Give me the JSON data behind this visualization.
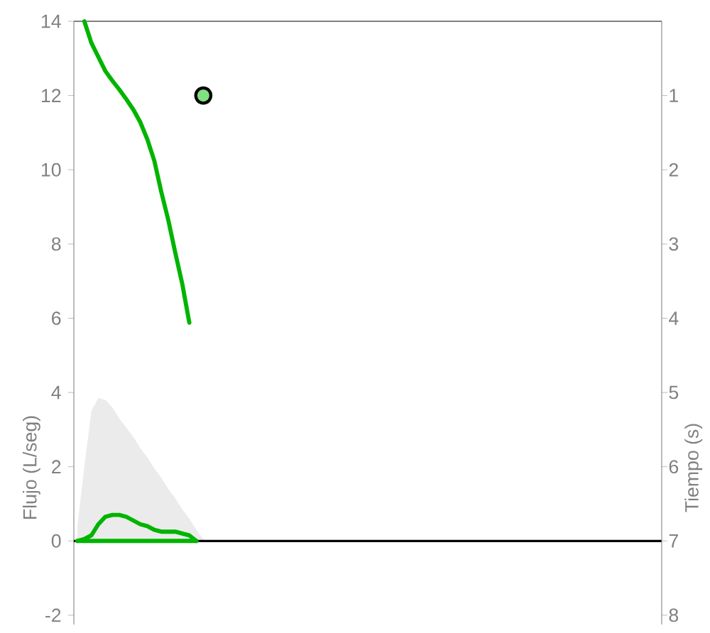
{
  "chart_data": {
    "type": "line",
    "ylabel": "Flujo (L/seg)",
    "y2label": "Tiempo (s)",
    "categories": [
      null,
      null,
      null,
      null,
      null,
      null,
      null,
      null,
      null,
      null,
      null,
      null,
      null,
      null,
      null,
      null,
      null,
      null,
      null,
      null,
      null,
      null,
      null,
      null,
      null,
      null,
      null,
      null,
      null,
      null,
      null,
      null,
      null,
      null,
      null,
      null,
      null,
      null,
      null,
      null,
      null,
      null,
      null,
      null,
      null,
      null,
      null,
      null,
      null,
      null,
      null,
      null,
      null,
      null,
      null,
      null,
      null,
      null,
      null,
      null,
      null,
      null,
      null,
      null,
      null,
      null,
      null,
      null,
      null,
      null,
      null,
      null,
      null,
      null,
      null,
      null,
      null,
      null,
      null,
      null,
      null,
      null,
      null,
      null
    ],
    "series": [
      {
        "type": "area",
        "color": "#ebebeb",
        "values": [
          0.4,
          2.0,
          3.5,
          3.85,
          3.8,
          3.6,
          3.3,
          3.05,
          2.8,
          2.5,
          2.25,
          1.95,
          1.7,
          1.4,
          1.15,
          0.85,
          0.6,
          0.3,
          0.05,
          null,
          null,
          null,
          null,
          null,
          null,
          null,
          null,
          null,
          null,
          null,
          null,
          null,
          null,
          null,
          null,
          null,
          null,
          null,
          null,
          null,
          null,
          null,
          null,
          null,
          null,
          null,
          null,
          null,
          null,
          null,
          null,
          null,
          null,
          null,
          null,
          null,
          null,
          null,
          null,
          null,
          null,
          null,
          null,
          null,
          null,
          null,
          null,
          null,
          null,
          null,
          null,
          null,
          null,
          null,
          null,
          null,
          null,
          null,
          null,
          null,
          null,
          null,
          null,
          null
        ]
      },
      {
        "color": "#00b400",
        "values": [
          0,
          0.05,
          0.15,
          0.45,
          0.65,
          0.7,
          0.7,
          0.65,
          0.55,
          0.45,
          0.4,
          0.3,
          0.25,
          0.25,
          0.25,
          0.2,
          0.15,
          0,
          null,
          null,
          null,
          null,
          null,
          null,
          null,
          null,
          null,
          null,
          null,
          null,
          null,
          null,
          null,
          null,
          null,
          null,
          null,
          null,
          null,
          null,
          null,
          null,
          null,
          null,
          null,
          null,
          null,
          null,
          null,
          null,
          null,
          null,
          null,
          null,
          null,
          null,
          null,
          null,
          null,
          null,
          null,
          null,
          null,
          null,
          null,
          null,
          null,
          null,
          null,
          null,
          null,
          null,
          null,
          null,
          null,
          null,
          null,
          null,
          null,
          null,
          null,
          null,
          null,
          null
        ]
      },
      {
        "color": "#00b400",
        "values": [
          0,
          0,
          0,
          0,
          0,
          0,
          0,
          0,
          0,
          0,
          0,
          0,
          0,
          0,
          0,
          0,
          0,
          0,
          null,
          null,
          null,
          null,
          null,
          null,
          null,
          null,
          null,
          null,
          null,
          null,
          null,
          null,
          null,
          null,
          null,
          null,
          null,
          null,
          null,
          null,
          null,
          null,
          null,
          null,
          null,
          null,
          null,
          null,
          null,
          null,
          null,
          null,
          null,
          null,
          null,
          null,
          null,
          null,
          null,
          null,
          null,
          null,
          null,
          null,
          null,
          null,
          null,
          null,
          null,
          null,
          null,
          null,
          null,
          null,
          null,
          null,
          null,
          null,
          null,
          null,
          null,
          null,
          null,
          null
        ]
      },
      {
        "axis": "y2",
        "color": "#00b400",
        "values": [
          null,
          0.0,
          0.29,
          0.48,
          0.67,
          0.8,
          0.92,
          1.05,
          1.19,
          1.36,
          1.59,
          1.88,
          2.3,
          2.68,
          3.12,
          3.54,
          4.06,
          null,
          null,
          null,
          null,
          null,
          null,
          null,
          null,
          null,
          null,
          null,
          null,
          null,
          null,
          null,
          null,
          null,
          null,
          null,
          null,
          null,
          null,
          null,
          null,
          null,
          null,
          null,
          null,
          null,
          null,
          null,
          null,
          null,
          null,
          null,
          null,
          null,
          null,
          null,
          null,
          null,
          null,
          null,
          null,
          null,
          null,
          null,
          null,
          null,
          null,
          null,
          null,
          null,
          null,
          null,
          null,
          null,
          null,
          null,
          null,
          null,
          null,
          null,
          null,
          null,
          null,
          null
        ]
      },
      {
        "type": "scatter",
        "marker": "circle",
        "color": "#80e080",
        "values": [
          null,
          null,
          null,
          null,
          null,
          null,
          null,
          null,
          null,
          null,
          null,
          null,
          null,
          null,
          null,
          null,
          null,
          null,
          12,
          null,
          null,
          null,
          null,
          null,
          null,
          null,
          null,
          null,
          null,
          null,
          null,
          null,
          null,
          null,
          null,
          null,
          null,
          null,
          null,
          null,
          null,
          null,
          null,
          null,
          null,
          null,
          null,
          null,
          null,
          null,
          null,
          null,
          null,
          null,
          null,
          null,
          null,
          null,
          null,
          null,
          null,
          null,
          null,
          null,
          null,
          null,
          null,
          null,
          null,
          null,
          null,
          null,
          null,
          null,
          null,
          null,
          null,
          null,
          null,
          null,
          null,
          null,
          null,
          null
        ]
      }
    ],
    "ylim": [
      -2.25,
      14
    ],
    "yticks": [
      -2,
      0,
      2,
      4,
      6,
      8,
      10,
      12,
      14
    ],
    "y2lim": [
      8.125,
      0
    ],
    "y2ticks": [
      1,
      2,
      3,
      4,
      5,
      6,
      7,
      8
    ],
    "ref_lines": [
      {
        "axis": "y",
        "value": 0,
        "color": "#000000"
      }
    ],
    "grid": false,
    "tick_labels": "y"
  }
}
